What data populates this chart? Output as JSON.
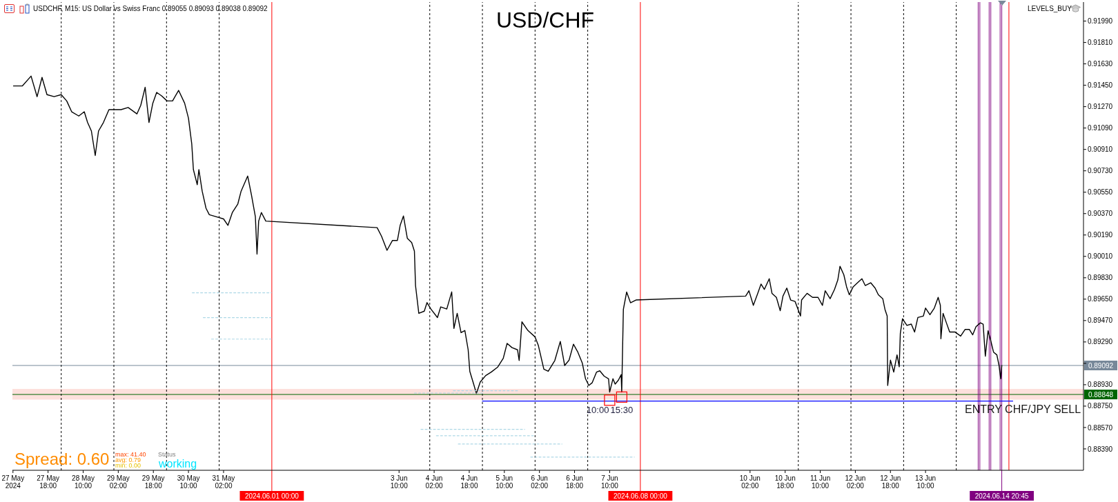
{
  "chart_data": {
    "type": "line",
    "title": "USD/CHF",
    "subtitle": "USDCHF, M15:  US Dollar vs Swiss Franc  0.89055 0.89093 0.89038 0.89092",
    "x": [
      "2024-05-27T02:15",
      "2024-05-27T06:15",
      "2024-05-27T10:15",
      "2024-05-27T13:00",
      "2024-05-27T15:15",
      "2024-05-27T17:30",
      "2024-05-27T20:45",
      "2024-05-28T00:00",
      "2024-05-28T02:30",
      "2024-05-28T04:45",
      "2024-05-28T08:00",
      "2024-05-28T10:30",
      "2024-05-28T12:00",
      "2024-05-28T13:45",
      "2024-05-28T15:30",
      "2024-05-28T17:00",
      "2024-05-28T19:15",
      "2024-05-28T21:45",
      "2024-05-29T00:00",
      "2024-05-29T03:15",
      "2024-05-29T06:30",
      "2024-05-29T10:30",
      "2024-05-29T12:15",
      "2024-05-29T14:15",
      "2024-05-29T16:00",
      "2024-05-29T17:45",
      "2024-05-29T19:30",
      "2024-05-29T21:45",
      "2024-05-30T00:15",
      "2024-05-30T02:45",
      "2024-05-30T05:30",
      "2024-05-30T08:15",
      "2024-05-30T10:00",
      "2024-05-30T11:30",
      "2024-05-30T12:15",
      "2024-05-30T14:00",
      "2024-05-30T14:45",
      "2024-05-30T16:15",
      "2024-05-30T18:00",
      "2024-05-30T19:30",
      "2024-05-30T22:45",
      "2024-05-31T02:00",
      "2024-05-31T04:00",
      "2024-05-31T06:00",
      "2024-05-31T08:30",
      "2024-05-31T10:00",
      "2024-05-31T13:00",
      "2024-05-31T14:45",
      "2024-05-31T16:30",
      "2024-05-31T17:15",
      "2024-05-31T18:00",
      "2024-05-31T19:15",
      "2024-05-31T21:15",
      "2024-06-03T00:00",
      "2024-06-03T02:00",
      "2024-06-03T04:30",
      "2024-06-03T07:00",
      "2024-06-03T09:15",
      "2024-06-03T10:30",
      "2024-06-03T12:00",
      "2024-06-03T13:45",
      "2024-06-03T15:45",
      "2024-06-03T17:00",
      "2024-06-03T17:30",
      "2024-06-03T19:00",
      "2024-06-03T21:30",
      "2024-06-03T22:45",
      "2024-06-04T00:30",
      "2024-06-04T03:30",
      "2024-06-04T05:00",
      "2024-06-04T07:45",
      "2024-06-04T10:00",
      "2024-06-04T11:00",
      "2024-06-04T12:30",
      "2024-06-04T14:15",
      "2024-06-04T16:00",
      "2024-06-04T17:30",
      "2024-06-04T18:15",
      "2024-06-04T20:00",
      "2024-06-04T21:15",
      "2024-06-04T23:00",
      "2024-06-05T01:30",
      "2024-06-05T04:00",
      "2024-06-05T07:00",
      "2024-06-05T09:30",
      "2024-06-05T11:15",
      "2024-06-05T13:30",
      "2024-06-05T16:00",
      "2024-06-05T16:45",
      "2024-06-05T18:00",
      "2024-06-05T20:45",
      "2024-06-06T00:00",
      "2024-06-06T01:30",
      "2024-06-06T04:00",
      "2024-06-06T06:00",
      "2024-06-06T09:00",
      "2024-06-06T11:30",
      "2024-06-06T13:30",
      "2024-06-06T15:30",
      "2024-06-06T17:30",
      "2024-06-06T19:30",
      "2024-06-06T21:30",
      "2024-06-06T23:00",
      "2024-06-07T00:30",
      "2024-06-07T02:00",
      "2024-06-07T04:00",
      "2024-06-07T05:30",
      "2024-06-07T07:30",
      "2024-06-07T09:30",
      "2024-06-07T10:00",
      "2024-06-07T11:30",
      "2024-06-07T12:30",
      "2024-06-07T14:00",
      "2024-06-07T15:15",
      "2024-06-07T15:30",
      "2024-06-07T16:15",
      "2024-06-07T17:45",
      "2024-06-07T19:30",
      "2024-06-07T22:00",
      "2024-06-10T00:00",
      "2024-06-10T01:30",
      "2024-06-10T03:30",
      "2024-06-10T05:30",
      "2024-06-10T07:00",
      "2024-06-10T08:30",
      "2024-06-10T10:45",
      "2024-06-10T12:00",
      "2024-06-10T14:00",
      "2024-06-10T15:45",
      "2024-06-10T17:00",
      "2024-06-10T18:45",
      "2024-06-10T20:30",
      "2024-06-10T22:30",
      "2024-06-11T01:00",
      "2024-06-11T01:30",
      "2024-06-11T04:00",
      "2024-06-11T06:30",
      "2024-06-11T09:00",
      "2024-06-11T11:00",
      "2024-06-11T12:15",
      "2024-06-11T14:30",
      "2024-06-11T16:30",
      "2024-06-11T18:00",
      "2024-06-11T19:00",
      "2024-06-11T20:45",
      "2024-06-11T22:00",
      "2024-06-11T23:15",
      "2024-06-12T01:00",
      "2024-06-12T03:00",
      "2024-06-12T05:00",
      "2024-06-12T06:30",
      "2024-06-12T09:00",
      "2024-06-12T11:00",
      "2024-06-12T12:30",
      "2024-06-12T14:30",
      "2024-06-12T15:30",
      "2024-06-12T16:30",
      "2024-06-12T16:45",
      "2024-06-12T18:00",
      "2024-06-12T19:30",
      "2024-06-12T21:00",
      "2024-06-12T22:00",
      "2024-06-12T22:30",
      "2024-06-12T23:30",
      "2024-06-13T01:30",
      "2024-06-13T03:30",
      "2024-06-13T05:00",
      "2024-06-13T06:30",
      "2024-06-13T09:00",
      "2024-06-13T10:00",
      "2024-06-13T12:00",
      "2024-06-13T14:00",
      "2024-06-13T15:45",
      "2024-06-13T16:45",
      "2024-06-13T17:00",
      "2024-06-13T18:00",
      "2024-06-13T19:30",
      "2024-06-13T21:00",
      "2024-06-13T23:30",
      "2024-06-14T02:00",
      "2024-06-14T04:00",
      "2024-06-14T06:00",
      "2024-06-14T07:30",
      "2024-06-14T09:00",
      "2024-06-14T11:00",
      "2024-06-14T12:15",
      "2024-06-14T13:15",
      "2024-06-14T14:30",
      "2024-06-14T15:30",
      "2024-06-14T17:00",
      "2024-06-14T18:30",
      "2024-06-14T19:30",
      "2024-06-14T20:15",
      "2024-06-14T20:45"
    ],
    "series": [
      {
        "color": "#000000",
        "values": [
          0.91444,
          0.91444,
          0.91527,
          0.91354,
          0.91516,
          0.91371,
          0.91354,
          0.91371,
          0.91318,
          0.91227,
          0.91191,
          0.91227,
          0.91137,
          0.91065,
          0.90859,
          0.91065,
          0.91137,
          0.91245,
          0.91245,
          0.91245,
          0.91263,
          0.91209,
          0.91281,
          0.91433,
          0.91137,
          0.91299,
          0.9139,
          0.91361,
          0.91318,
          0.91318,
          0.91407,
          0.91299,
          0.91173,
          0.90956,
          0.9074,
          0.90614,
          0.9074,
          0.90559,
          0.90415,
          0.90361,
          0.90343,
          0.90325,
          0.90271,
          0.90379,
          0.90451,
          0.90559,
          0.90686,
          0.90523,
          0.90343,
          0.90029,
          0.90307,
          0.90379,
          0.90307,
          0.90252,
          0.9018,
          0.90061,
          0.90144,
          0.90144,
          0.90271,
          0.9035,
          0.90163,
          0.90126,
          0.90054,
          0.89765,
          0.89531,
          0.89549,
          0.89621,
          0.89567,
          0.89495,
          0.89585,
          0.89567,
          0.89711,
          0.89404,
          0.89531,
          0.89368,
          0.89386,
          0.89224,
          0.89043,
          0.88935,
          0.88856,
          0.88953,
          0.89007,
          0.89036,
          0.89079,
          0.89152,
          0.89278,
          0.89242,
          0.89224,
          0.89134,
          0.89459,
          0.89386,
          0.89332,
          0.8926,
          0.89061,
          0.89043,
          0.89134,
          0.89294,
          0.89092,
          0.89137,
          0.89271,
          0.89204,
          0.89114,
          0.8898,
          0.88924,
          0.88946,
          0.89036,
          0.89047,
          0.89002,
          0.8898,
          0.88868,
          0.8898,
          0.88935,
          0.88969,
          0.89014,
          0.88868,
          0.89564,
          0.8971,
          0.8962,
          0.89643,
          0.89676,
          0.89721,
          0.89598,
          0.89699,
          0.89777,
          0.89732,
          0.89822,
          0.89699,
          0.89665,
          0.89553,
          0.89676,
          0.89743,
          0.89643,
          0.89631,
          0.89508,
          0.89643,
          0.89699,
          0.89665,
          0.89665,
          0.89598,
          0.89721,
          0.89654,
          0.89732,
          0.89811,
          0.89927,
          0.89855,
          0.89754,
          0.89687,
          0.89754,
          0.89788,
          0.89822,
          0.89765,
          0.89788,
          0.89743,
          0.89687,
          0.89654,
          0.89564,
          0.89508,
          0.88924,
          0.89137,
          0.89036,
          0.89181,
          0.89081,
          0.89361,
          0.89485,
          0.89429,
          0.8944,
          0.89373,
          0.89496,
          0.89508,
          0.89575,
          0.89519,
          0.89575,
          0.89665,
          0.89598,
          0.89317,
          0.8953,
          0.89451,
          0.89373,
          0.89373,
          0.89339,
          0.89395,
          0.89395,
          0.8935,
          0.89418,
          0.89451,
          0.8944,
          0.8917,
          0.89384,
          0.89317,
          0.89204,
          0.89181,
          0.89092,
          0.8898,
          0.89092
        ]
      },
      {
        "x": [
          "2024-06-05T00:00",
          "2024-06-15T01:45"
        ],
        "values": [
          0.88792,
          0.88792
        ],
        "color": "#0000ff"
      },
      {
        "x": [
          "2024-05-30T11:45",
          "2024-05-31T23:45"
        ],
        "values": [
          0.89704,
          0.89704
        ],
        "color": "#add8e6",
        "line_style": "dashed"
      },
      {
        "x": [
          "2024-05-30T16:45",
          "2024-05-31T23:45"
        ],
        "values": [
          0.89495,
          0.89495
        ],
        "color": "#add8e6",
        "line_style": "dashed"
      },
      {
        "x": [
          "2024-05-30T20:30",
          "2024-05-31T23:45"
        ],
        "values": [
          0.89314,
          0.89314
        ],
        "color": "#add8e6",
        "line_style": "dashed"
      },
      {
        "x": [
          "2024-06-03T17:00",
          "2024-06-05T00:15"
        ],
        "values": [
          0.8886,
          0.8886
        ],
        "color": "#add8e6",
        "line_style": "dashed"
      },
      {
        "x": [
          "2024-06-04T10:45",
          "2024-06-05T16:30"
        ],
        "values": [
          0.8888,
          0.8888
        ],
        "color": "#add8e6",
        "line_style": "dashed"
      },
      {
        "x": [
          "2024-06-03T20:00",
          "2024-06-05T19:15"
        ],
        "values": [
          0.88554,
          0.88554
        ],
        "color": "#add8e6",
        "line_style": "dashed"
      },
      {
        "x": [
          "2024-06-04T03:00",
          "2024-06-05T23:15"
        ],
        "values": [
          0.88501,
          0.88501
        ],
        "color": "#add8e6",
        "line_style": "dashed"
      },
      {
        "x": [
          "2024-06-04T13:00",
          "2024-06-06T12:15"
        ],
        "values": [
          0.88431,
          0.88431
        ],
        "color": "#add8e6",
        "line_style": "dashed"
      },
      {
        "x": [
          "2024-06-05T22:00",
          "2024-06-07T21:15"
        ],
        "values": [
          0.88321,
          0.88321
        ],
        "color": "#add8e6",
        "line_style": "dashed"
      }
    ],
    "xlim": [
      "2024-05-27T01:45",
      "2024-06-16T10:00"
    ],
    "xticks": [
      {
        "value": "2024-05-27T02:00",
        "label": "27 May 2024"
      },
      {
        "value": "2024-05-27T18:00",
        "label": "27 May 18:00"
      },
      {
        "value": "2024-05-28T10:00",
        "label": "28 May 10:00"
      },
      {
        "value": "2024-05-29T02:00",
        "label": "29 May 02:00"
      },
      {
        "value": "2024-05-29T18:00",
        "label": "29 May 18:00"
      },
      {
        "value": "2024-05-30T10:00",
        "label": "30 May 10:00"
      },
      {
        "value": "2024-05-31T02:00",
        "label": "31 May 02:00"
      },
      {
        "value": "2024-06-03T10:00",
        "label": "3 Jun 10:00"
      },
      {
        "value": "2024-06-04T02:00",
        "label": "4 Jun 02:00"
      },
      {
        "value": "2024-06-04T18:00",
        "label": "4 Jun 18:00"
      },
      {
        "value": "2024-06-05T10:00",
        "label": "5 Jun 10:00"
      },
      {
        "value": "2024-06-06T02:00",
        "label": "6 Jun 02:00"
      },
      {
        "value": "2024-06-06T18:00",
        "label": "6 Jun 18:00"
      },
      {
        "value": "2024-06-07T10:00",
        "label": "7 Jun 10:00"
      },
      {
        "value": "2024-06-10T02:00",
        "label": "10 Jun 02:00"
      },
      {
        "value": "2024-06-10T18:00",
        "label": "10 Jun 18:00"
      },
      {
        "value": "2024-06-11T10:00",
        "label": "11 Jun 10:00"
      },
      {
        "value": "2024-06-12T02:00",
        "label": "12 Jun 02:00"
      },
      {
        "value": "2024-06-12T18:00",
        "label": "12 Jun 18:00"
      },
      {
        "value": "2024-06-13T10:00",
        "label": "13 Jun 10:00"
      }
    ],
    "ylim": [
      0.8821,
      0.9215
    ],
    "yticks": [
      {
        "value": 0.8839,
        "label": "0.88390"
      },
      {
        "value": 0.8857,
        "label": "0.88570"
      },
      {
        "value": 0.8875,
        "label": "0.88750"
      },
      {
        "value": 0.8893,
        "label": "0.88930"
      },
      {
        "value": 0.8911,
        "label": null
      },
      {
        "value": 0.8929,
        "label": "0.89290"
      },
      {
        "value": 0.8947,
        "label": "0.89470"
      },
      {
        "value": 0.8965,
        "label": "0.89650"
      },
      {
        "value": 0.8983,
        "label": "0.89830"
      },
      {
        "value": 0.9001,
        "label": "0.90010"
      },
      {
        "value": 0.9019,
        "label": "0.90190"
      },
      {
        "value": 0.9037,
        "label": "0.90370"
      },
      {
        "value": 0.9055,
        "label": "0.90550"
      },
      {
        "value": 0.9073,
        "label": "0.90730"
      },
      {
        "value": 0.9091,
        "label": "0.90910"
      },
      {
        "value": 0.9109,
        "label": "0.91090"
      },
      {
        "value": 0.9127,
        "label": "0.91270"
      },
      {
        "value": 0.9145,
        "label": "0.91450"
      },
      {
        "value": 0.9163,
        "label": "0.91630"
      },
      {
        "value": 0.9181,
        "label": "0.91810"
      },
      {
        "value": 0.9199,
        "label": "0.91990"
      }
    ],
    "bands": [
      {
        "axis": "y",
        "from": 0.88805,
        "to": 0.88894,
        "color": "#fde0dc",
        "label": null
      }
    ],
    "ref_lines": [
      {
        "axis": "y",
        "value": 0.89092,
        "label": "0.89092",
        "color": "#778899"
      },
      {
        "axis": "y",
        "value": 0.88848,
        "label": "0.88848",
        "color": "#006400"
      },
      {
        "axis": "x",
        "value": "2024-05-28T00:00",
        "label": null,
        "color": "#000000",
        "line_style": "dashed"
      },
      {
        "axis": "x",
        "value": "2024-05-29T00:00",
        "label": null,
        "color": "#000000",
        "line_style": "dashed"
      },
      {
        "axis": "x",
        "value": "2024-05-30T00:00",
        "label": null,
        "color": "#000000",
        "line_style": "dashed"
      },
      {
        "axis": "x",
        "value": "2024-05-31T00:00",
        "label": null,
        "color": "#000000",
        "line_style": "dashed"
      },
      {
        "axis": "x",
        "value": "2024-06-04T00:00",
        "label": null,
        "color": "#000000",
        "line_style": "dashed"
      },
      {
        "axis": "x",
        "value": "2024-06-05T00:00",
        "label": null,
        "color": "#000000",
        "line_style": "dashed"
      },
      {
        "axis": "x",
        "value": "2024-06-06T00:00",
        "label": null,
        "color": "#000000",
        "line_style": "dashed"
      },
      {
        "axis": "x",
        "value": "2024-06-07T00:00",
        "label": null,
        "color": "#000000",
        "line_style": "dashed"
      },
      {
        "axis": "x",
        "value": "2024-06-11T00:00",
        "label": null,
        "color": "#000000",
        "line_style": "dashed"
      },
      {
        "axis": "x",
        "value": "2024-06-12T00:00",
        "label": null,
        "color": "#000000",
        "line_style": "dashed"
      },
      {
        "axis": "x",
        "value": "2024-06-13T00:00",
        "label": null,
        "color": "#000000",
        "line_style": "dashed"
      },
      {
        "axis": "x",
        "value": "2024-06-14T00:00",
        "label": null,
        "color": "#000000",
        "line_style": "dashed"
      },
      {
        "axis": "x",
        "value": "2024-06-01T00:00",
        "label": "2024.06.01 00:00",
        "color": "#ff0000"
      },
      {
        "axis": "x",
        "value": "2024-06-08T00:00",
        "label": "2024.06.08 00:00",
        "color": "#ff0000"
      },
      {
        "axis": "x",
        "value": "2024-06-15T00:00",
        "label": null,
        "color": "#ff0000"
      },
      {
        "axis": "x",
        "value": "2024-06-14T10:00",
        "label": null,
        "color": "#800080"
      },
      {
        "axis": "x",
        "value": "2024-06-14T10:45",
        "label": null,
        "color": "#800080"
      },
      {
        "axis": "x",
        "value": "2024-06-14T15:00",
        "label": null,
        "color": "#800080"
      },
      {
        "axis": "x",
        "value": "2024-06-14T15:45",
        "label": null,
        "color": "#800080"
      },
      {
        "axis": "x",
        "value": "2024-06-14T20:00",
        "label": null,
        "color": "#800080"
      },
      {
        "axis": "x",
        "value": "2024-06-14T20:45",
        "label": "2024.06.14 20:45",
        "color": "#800080"
      }
    ],
    "annotations": [
      "LEVELS_BUY",
      "ENTRY CHF/JPY SELL",
      "Spread: 0.60",
      "max: 41.40",
      "avg: 0.79",
      "min: 0.00",
      "Status",
      "working",
      {
        "text": "10:00",
        "x": "2024-06-07T10:00",
        "y": 0.888
      },
      {
        "text": "15:30",
        "x": "2024-06-07T15:30",
        "y": 0.88826
      }
    ]
  }
}
